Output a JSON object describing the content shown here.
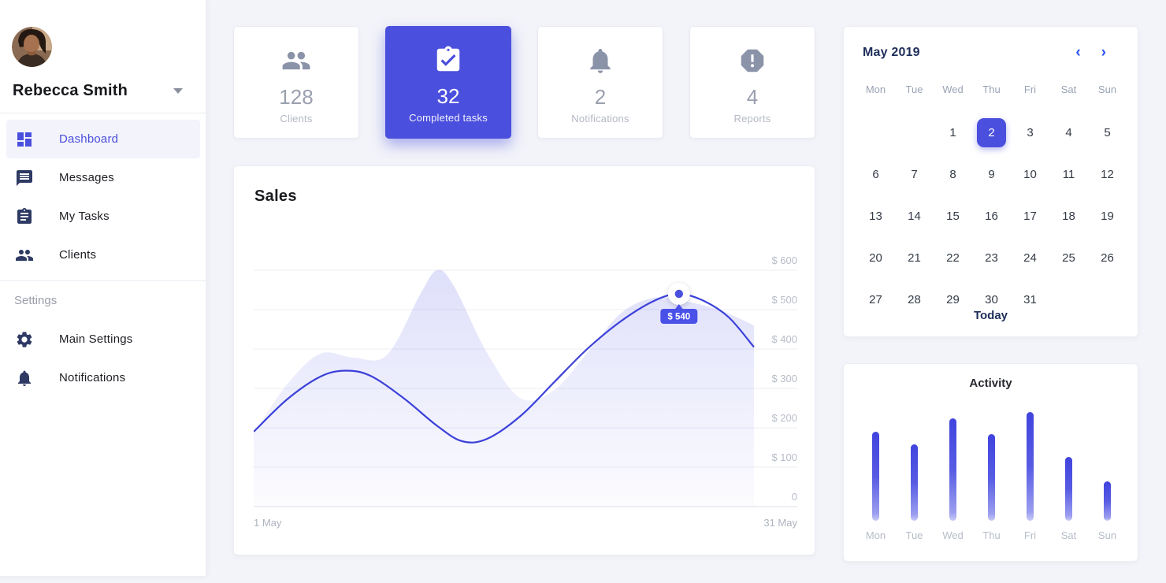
{
  "sidebar": {
    "user": {
      "name": "Rebecca Smith"
    },
    "items": [
      {
        "label": "Dashboard",
        "icon": "dashboard-icon",
        "active": true
      },
      {
        "label": "Messages",
        "icon": "chat-icon",
        "active": false
      },
      {
        "label": "My Tasks",
        "icon": "clipboard-icon",
        "active": false
      },
      {
        "label": "Clients",
        "icon": "people-icon",
        "active": false
      }
    ],
    "section_label": "Settings",
    "settings_items": [
      {
        "label": "Main Settings",
        "icon": "gear-icon"
      },
      {
        "label": "Notifications",
        "icon": "bell-icon"
      }
    ]
  },
  "stats": {
    "cards": [
      {
        "value": "128",
        "label": "Clients",
        "icon": "people-icon",
        "highlight": false
      },
      {
        "value": "32",
        "label": "Completed tasks",
        "icon": "clipboard-check-icon",
        "highlight": true
      },
      {
        "value": "2",
        "label": "Notifications",
        "icon": "bell-icon",
        "highlight": false
      },
      {
        "value": "4",
        "label": "Reports",
        "icon": "report-octagon-icon",
        "highlight": false
      }
    ]
  },
  "calendar": {
    "title": "May 2019",
    "prev_icon": "chevron-left-icon",
    "next_icon": "chevron-right-icon",
    "prev_glyph": "‹",
    "next_glyph": "›",
    "weekdays": [
      "Mon",
      "Tue",
      "Wed",
      "Thu",
      "Fri",
      "Sat",
      "Sun"
    ],
    "weeks": [
      [
        "",
        "",
        "1",
        "2",
        "3",
        "4",
        "5"
      ],
      [
        "6",
        "7",
        "8",
        "9",
        "10",
        "11",
        "12"
      ],
      [
        "13",
        "14",
        "15",
        "16",
        "17",
        "18",
        "19"
      ],
      [
        "20",
        "21",
        "22",
        "23",
        "24",
        "25",
        "26"
      ],
      [
        "27",
        "28",
        "29",
        "30",
        "31",
        "",
        ""
      ]
    ],
    "selected_day": "2",
    "today_label": "Today"
  },
  "chart_data": [
    {
      "id": "sales",
      "type": "area",
      "title": "Sales",
      "x_start_label": "1 May",
      "x_end_label": "31 May",
      "x_range_days": [
        1,
        31
      ],
      "ylim": [
        0,
        600
      ],
      "y_ticks": [
        600,
        500,
        400,
        300,
        200,
        100,
        0
      ],
      "y_tick_labels": [
        "$ 600",
        "$ 500",
        "$ 400",
        "$ 300",
        "$ 200",
        "$ 100",
        "0"
      ],
      "grid": true,
      "series": [
        {
          "name": "area-series",
          "style": "area",
          "points": [
            [
              1,
              185
            ],
            [
              3,
              310
            ],
            [
              5,
              388
            ],
            [
              7,
              378
            ],
            [
              9,
              385
            ],
            [
              11,
              540
            ],
            [
              12,
              600
            ],
            [
              13,
              560
            ],
            [
              15,
              390
            ],
            [
              17,
              275
            ],
            [
              19,
              295
            ],
            [
              21,
              390
            ],
            [
              23,
              490
            ],
            [
              25,
              530
            ],
            [
              27,
              520
            ],
            [
              29,
              498
            ],
            [
              31,
              460
            ]
          ]
        },
        {
          "name": "line-series",
          "style": "line",
          "points": [
            [
              1,
              190
            ],
            [
              3,
              272
            ],
            [
              5,
              330
            ],
            [
              6.5,
              345
            ],
            [
              8,
              332
            ],
            [
              10,
              275
            ],
            [
              12,
              205
            ],
            [
              13.5,
              166
            ],
            [
              15,
              172
            ],
            [
              17,
              230
            ],
            [
              19,
              315
            ],
            [
              21,
              400
            ],
            [
              23,
              470
            ],
            [
              25,
              522
            ],
            [
              26.5,
              540
            ],
            [
              28,
              522
            ],
            [
              29.5,
              480
            ],
            [
              31,
              405
            ]
          ]
        }
      ],
      "highlight": {
        "day": 26.5,
        "value": 540,
        "tooltip": "$ 540"
      }
    },
    {
      "id": "activity",
      "type": "bar",
      "title": "Activity",
      "categories": [
        "Mon",
        "Tue",
        "Wed",
        "Thu",
        "Fri",
        "Sat",
        "Sun"
      ],
      "values": [
        82,
        70,
        94,
        80,
        100,
        59,
        36
      ],
      "ylim": [
        0,
        100
      ],
      "unit": "percent-of-max"
    }
  ],
  "colors": {
    "accent": "#4b4fdd",
    "line": "#3b40d8",
    "area_fill": "#5c61e6",
    "tooltip_bg": "#4a51e8",
    "navy_text": "#1e2e5a",
    "chevron_blue": "#2b50f0",
    "icon_navy": "#2e3a63",
    "icon_gray": "#8b93a9",
    "muted_text": "#b4b9c4",
    "grid_line": "#ecedf3"
  }
}
